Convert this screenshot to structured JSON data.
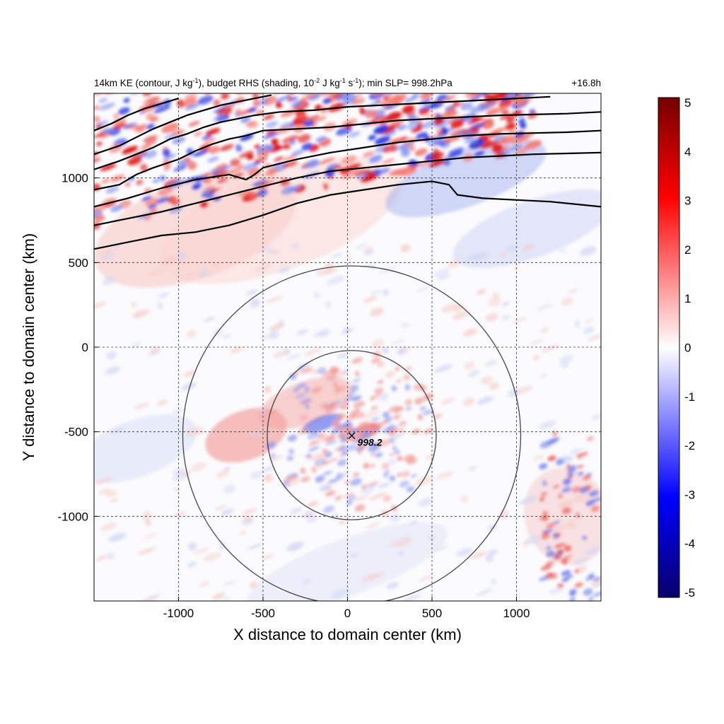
{
  "title": {
    "left_prefix": "14km KE (contour, J kg",
    "left_exp1": "-1",
    "left_mid1": "), budget RHS (shading, 10",
    "left_exp2": "-2",
    "left_mid2": " J kg",
    "left_exp3": "-1",
    "left_mid3": " s",
    "left_exp4": "-1",
    "left_suffix": "); min SLP= 998.2hPa",
    "right": "+16.8h"
  },
  "chart_data": {
    "type": "heatmap",
    "xlabel": "X distance to domain center (km)",
    "ylabel": "Y distance to domain center (km)",
    "xlim": [
      -1500,
      1500
    ],
    "ylim": [
      -1500,
      1500
    ],
    "x_ticks": [
      -1000,
      -500,
      0,
      500,
      1000
    ],
    "y_ticks": [
      -1000,
      -500,
      0,
      500,
      1000
    ],
    "x_tick_labels": [
      "-1000",
      "-500",
      "0",
      "500",
      "1000"
    ],
    "y_tick_labels": [
      "-1000",
      "-500",
      "0",
      "500",
      "1000"
    ],
    "grid": true,
    "colorbar": {
      "range": [
        -5,
        5
      ],
      "ticks": [
        5,
        4,
        3,
        2,
        1,
        0,
        -1,
        -2,
        -3,
        -4,
        -5
      ],
      "tick_labels": [
        "5",
        "4",
        "3",
        "2",
        "1",
        "0",
        "-1",
        "-2",
        "-3",
        "-4",
        "-5"
      ],
      "colors": [
        "#08006b",
        "#0000ff",
        "#ffffff",
        "#ff0000",
        "#750000"
      ]
    },
    "storm_center": {
      "x": 25,
      "y": -520,
      "marker": "×",
      "label": "998.2"
    },
    "circles": [
      {
        "cx": 25,
        "cy": -520,
        "r": 500
      },
      {
        "cx": 25,
        "cy": -520,
        "r": 1000
      }
    ],
    "ke_contours": [
      {
        "points": [
          [
            -1500,
            580
          ],
          [
            -1300,
            620
          ],
          [
            -1100,
            660
          ],
          [
            -900,
            680
          ],
          [
            -700,
            720
          ],
          [
            -500,
            780
          ],
          [
            -300,
            850
          ],
          [
            -100,
            900
          ],
          [
            100,
            930
          ],
          [
            300,
            960
          ],
          [
            500,
            980
          ],
          [
            600,
            960
          ],
          [
            650,
            900
          ],
          [
            800,
            880
          ],
          [
            1000,
            870
          ],
          [
            1200,
            860
          ],
          [
            1500,
            830
          ]
        ]
      },
      {
        "points": [
          [
            -1500,
            720
          ],
          [
            -1300,
            760
          ],
          [
            -1100,
            800
          ],
          [
            -900,
            850
          ],
          [
            -700,
            900
          ],
          [
            -500,
            950
          ],
          [
            -300,
            1000
          ],
          [
            -100,
            1040
          ],
          [
            100,
            1060
          ],
          [
            300,
            1080
          ],
          [
            500,
            1100
          ],
          [
            700,
            1120
          ],
          [
            900,
            1130
          ],
          [
            1100,
            1140
          ],
          [
            1300,
            1145
          ],
          [
            1500,
            1150
          ]
        ]
      },
      {
        "points": [
          [
            -1500,
            830
          ],
          [
            -1300,
            880
          ],
          [
            -1100,
            940
          ],
          [
            -900,
            990
          ],
          [
            -700,
            1020
          ],
          [
            -600,
            990
          ],
          [
            -550,
            1020
          ],
          [
            -500,
            1060
          ],
          [
            -300,
            1110
          ],
          [
            -100,
            1150
          ],
          [
            100,
            1180
          ],
          [
            300,
            1210
          ],
          [
            500,
            1230
          ],
          [
            700,
            1250
          ],
          [
            900,
            1260
          ],
          [
            1100,
            1265
          ],
          [
            1300,
            1270
          ],
          [
            1500,
            1280
          ]
        ]
      },
      {
        "points": [
          [
            -1500,
            930
          ],
          [
            -1350,
            960
          ],
          [
            -1250,
            1020
          ],
          [
            -1150,
            1060
          ],
          [
            -1000,
            1110
          ],
          [
            -900,
            1160
          ],
          [
            -800,
            1200
          ],
          [
            -700,
            1230
          ],
          [
            -600,
            1250
          ],
          [
            -500,
            1280
          ],
          [
            -300,
            1290
          ],
          [
            -100,
            1300
          ],
          [
            100,
            1320
          ],
          [
            300,
            1340
          ],
          [
            500,
            1350
          ],
          [
            700,
            1360
          ],
          [
            900,
            1370
          ],
          [
            1100,
            1375
          ],
          [
            1300,
            1380
          ],
          [
            1500,
            1390
          ]
        ]
      },
      {
        "points": [
          [
            -1500,
            1050
          ],
          [
            -1350,
            1100
          ],
          [
            -1250,
            1140
          ],
          [
            -1150,
            1180
          ],
          [
            -1050,
            1230
          ],
          [
            -950,
            1260
          ],
          [
            -850,
            1300
          ],
          [
            -750,
            1330
          ],
          [
            -650,
            1350
          ],
          [
            -550,
            1370
          ],
          [
            -400,
            1390
          ],
          [
            -200,
            1400
          ],
          [
            0,
            1420
          ],
          [
            200,
            1430
          ],
          [
            400,
            1440
          ],
          [
            600,
            1450
          ],
          [
            800,
            1460
          ],
          [
            1000,
            1470
          ],
          [
            1200,
            1480
          ]
        ]
      },
      {
        "points": [
          [
            -1500,
            1140
          ],
          [
            -1350,
            1190
          ],
          [
            -1250,
            1240
          ],
          [
            -1150,
            1290
          ],
          [
            -1050,
            1330
          ],
          [
            -950,
            1370
          ],
          [
            -850,
            1400
          ],
          [
            -750,
            1430
          ],
          [
            -650,
            1450
          ],
          [
            -550,
            1470
          ],
          [
            -450,
            1490
          ]
        ]
      },
      {
        "points": [
          [
            -1500,
            1280
          ],
          [
            -1400,
            1320
          ],
          [
            -1300,
            1370
          ],
          [
            -1200,
            1410
          ],
          [
            -1100,
            1440
          ],
          [
            -1000,
            1470
          ]
        ]
      }
    ]
  }
}
